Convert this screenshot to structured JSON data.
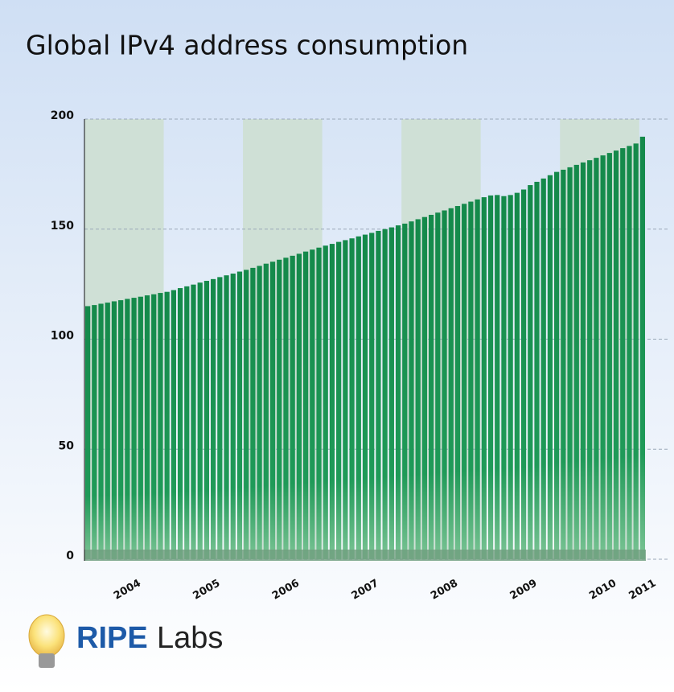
{
  "chart_data": {
    "type": "bar",
    "title": "Global IPv4 address consumption",
    "categories": [
      null,
      null,
      null,
      null,
      null,
      null,
      "2004",
      null,
      null,
      null,
      null,
      null,
      null,
      null,
      null,
      null,
      null,
      null,
      "2005",
      null,
      null,
      null,
      null,
      null,
      null,
      null,
      null,
      null,
      null,
      null,
      "2006",
      null,
      null,
      null,
      null,
      null,
      null,
      null,
      null,
      null,
      null,
      null,
      "2007",
      null,
      null,
      null,
      null,
      null,
      null,
      null,
      null,
      null,
      null,
      null,
      "2008",
      null,
      null,
      null,
      null,
      null,
      null,
      null,
      null,
      null,
      null,
      null,
      "2009",
      null,
      null,
      null,
      null,
      null,
      null,
      null,
      null,
      null,
      null,
      null,
      "2010",
      null,
      null,
      null,
      null,
      null,
      "2011"
    ],
    "values": [
      115,
      115.5,
      116.1,
      116.6,
      117.2,
      117.7,
      118.3,
      118.8,
      119.3,
      119.9,
      120.4,
      121,
      121.5,
      122.3,
      123.2,
      124,
      124.8,
      125.7,
      126.5,
      127.3,
      128.2,
      129,
      129.8,
      130.7,
      131.5,
      132.4,
      133.3,
      134.3,
      135.2,
      136.1,
      137,
      137.9,
      138.8,
      139.8,
      140.7,
      141.6,
      142.5,
      143.3,
      144.2,
      145,
      145.8,
      146.7,
      147.5,
      148.3,
      149.2,
      150,
      150.8,
      151.7,
      152.5,
      153.5,
      154.5,
      155.5,
      156.5,
      157.5,
      158.5,
      159.5,
      160.5,
      161.5,
      162.5,
      163.5,
      164.5,
      165.3,
      165.5,
      165,
      165.5,
      166.5,
      168,
      170,
      171.5,
      173,
      174.5,
      176,
      177,
      178.1,
      179.2,
      180.3,
      181.3,
      182.4,
      183.5,
      184.6,
      185.7,
      186.8,
      187.8,
      188.9,
      192
    ],
    "color": "#1a9150",
    "ylim": [
      0,
      200
    ],
    "yticks": [
      0,
      50,
      100,
      150,
      200
    ],
    "grid": true
  },
  "logo": {
    "brand": "RIPE",
    "product": "Labs"
  }
}
